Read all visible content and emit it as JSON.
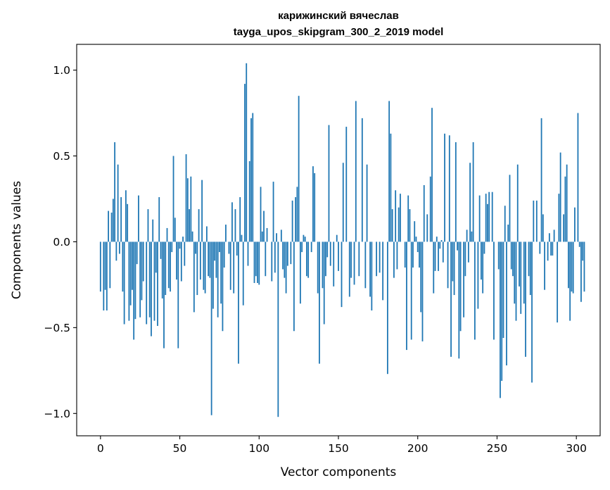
{
  "chart_data": {
    "type": "bar",
    "title": "карижинский вячеслав",
    "subtitle": "tayga_upos_skipgram_300_2_2019 model",
    "xlabel": "Vector components",
    "ylabel": "Components values",
    "xlim": [
      -15,
      315
    ],
    "ylim": [
      -1.13,
      1.15
    ],
    "xticks": [
      0,
      50,
      100,
      150,
      200,
      250,
      300
    ],
    "xtick_labels": [
      "0",
      "50",
      "100",
      "150",
      "200",
      "250",
      "300"
    ],
    "yticks": [
      1.0,
      0.5,
      0.0,
      -0.5,
      -1.0
    ],
    "ytick_labels": [
      "1.0",
      "0.5",
      "0.0",
      "−0.5",
      "−1.0"
    ],
    "bar_color": "#1f77b4",
    "grid": false,
    "values": [
      -0.29,
      0.0,
      -0.4,
      -0.28,
      -0.4,
      0.18,
      -0.27,
      0.17,
      0.25,
      0.58,
      -0.11,
      0.45,
      -0.07,
      0.26,
      -0.29,
      -0.48,
      0.3,
      0.22,
      -0.46,
      -0.37,
      -0.28,
      -0.57,
      -0.45,
      -0.13,
      0.27,
      -0.44,
      -0.34,
      -0.23,
      0.0,
      -0.48,
      0.19,
      -0.44,
      -0.55,
      0.13,
      -0.46,
      -0.18,
      -0.49,
      0.26,
      -0.1,
      -0.33,
      -0.62,
      -0.31,
      0.08,
      -0.27,
      -0.29,
      -0.06,
      0.5,
      0.14,
      -0.22,
      -0.62,
      -0.04,
      -0.23,
      0.03,
      -0.14,
      0.51,
      0.37,
      0.19,
      0.38,
      0.06,
      -0.41,
      -0.07,
      -0.31,
      0.19,
      -0.22,
      0.36,
      -0.28,
      -0.3,
      0.09,
      -0.2,
      -0.21,
      -1.01,
      -0.39,
      -0.11,
      -0.21,
      -0.44,
      -0.06,
      -0.36,
      -0.52,
      -0.15,
      0.1,
      0.0,
      -0.07,
      -0.28,
      0.23,
      -0.3,
      0.19,
      -0.08,
      -0.71,
      0.26,
      0.04,
      -0.37,
      0.92,
      1.04,
      -0.14,
      0.47,
      0.72,
      0.75,
      -0.24,
      -0.2,
      -0.24,
      -0.25,
      0.32,
      0.06,
      0.18,
      -0.2,
      0.08,
      0.0,
      0.0,
      -0.23,
      0.35,
      -0.18,
      0.05,
      -1.02,
      0.0,
      0.07,
      -0.16,
      -0.21,
      -0.3,
      -0.14,
      0.0,
      -0.13,
      0.24,
      -0.52,
      0.26,
      0.32,
      0.85,
      -0.36,
      -0.06,
      0.04,
      0.03,
      -0.2,
      -0.21,
      0.0,
      -0.06,
      0.44,
      0.4,
      0.0,
      -0.3,
      -0.71,
      0.0,
      -0.27,
      -0.48,
      -0.2,
      -0.09,
      0.68,
      -0.14,
      0.0,
      -0.26,
      0.0,
      0.04,
      -0.17,
      0.0,
      -0.38,
      0.46,
      0.0,
      0.67,
      0.0,
      -0.32,
      -0.21,
      0.0,
      -0.25,
      0.82,
      0.0,
      -0.2,
      0.0,
      0.72,
      0.0,
      -0.27,
      0.45,
      0.0,
      -0.32,
      -0.4,
      0.0,
      0.0,
      -0.2,
      0.0,
      -0.18,
      0.0,
      -0.34,
      0.0,
      0.0,
      -0.77,
      0.82,
      0.63,
      0.19,
      -0.21,
      0.3,
      -0.16,
      0.2,
      0.28,
      0.0,
      0.0,
      -0.15,
      -0.63,
      0.27,
      0.19,
      -0.57,
      -0.15,
      0.12,
      0.03,
      -0.06,
      -0.15,
      -0.41,
      -0.58,
      0.33,
      0.0,
      0.16,
      0.0,
      0.38,
      0.78,
      -0.3,
      -0.17,
      0.03,
      -0.17,
      -0.04,
      0.01,
      -0.12,
      0.63,
      0.0,
      -0.27,
      0.62,
      -0.67,
      -0.23,
      -0.31,
      0.58,
      -0.05,
      -0.68,
      -0.52,
      0.0,
      -0.44,
      -0.2,
      0.07,
      -0.12,
      0.46,
      0.06,
      0.58,
      -0.57,
      0.0,
      -0.39,
      0.27,
      -0.22,
      -0.3,
      -0.07,
      0.28,
      0.22,
      0.29,
      0.0,
      0.29,
      -0.57,
      0.0,
      0.0,
      -0.16,
      -0.91,
      -0.81,
      -0.56,
      0.21,
      -0.72,
      0.1,
      0.39,
      -0.16,
      -0.2,
      -0.36,
      -0.46,
      0.45,
      -0.26,
      -0.42,
      0.0,
      -0.36,
      -0.67,
      0.0,
      -0.2,
      -0.31,
      -0.82,
      0.24,
      0.0,
      0.24,
      0.0,
      -0.07,
      0.72,
      0.16,
      -0.28,
      0.0,
      -0.11,
      0.05,
      -0.08,
      -0.08,
      0.07,
      0.0,
      -0.47,
      0.28,
      0.52,
      0.0,
      0.16,
      0.38,
      0.45,
      -0.27,
      -0.46,
      -0.29,
      -0.3,
      0.2,
      0.0,
      0.75,
      -0.03,
      -0.35,
      -0.11,
      -0.29
    ]
  }
}
